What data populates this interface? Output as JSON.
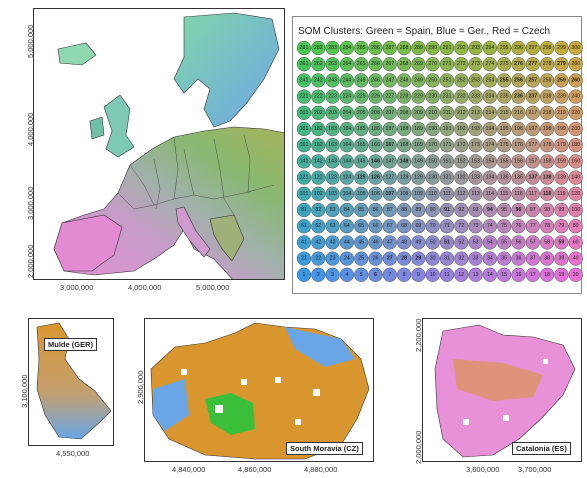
{
  "europe_map": {
    "y_ticks": [
      "5,000,000",
      "4,000,000",
      "3,000,000",
      "2,000,000"
    ],
    "x_ticks": [
      "3,000,000",
      "4,000,000",
      "5,000,000"
    ]
  },
  "som": {
    "title": "SOM Clusters: Green = Spain, Blue = Ger., Red = Czech",
    "rows": 15,
    "cols": 20,
    "highlighted_red": [
      257,
      259,
      260,
      255,
      374,
      319,
      320
    ],
    "highlighted_blue": [
      333,
      167,
      146,
      148,
      126,
      125
    ],
    "highlighted_dark": [
      389,
      388,
      353,
      277,
      276,
      279,
      256,
      236,
      237,
      138,
      137,
      118,
      107,
      91,
      94,
      96,
      51,
      59,
      28,
      29,
      27,
      6
    ]
  },
  "mulde": {
    "label": "Mulde (GER)",
    "y_ticks": [
      "3,100,000"
    ],
    "x_ticks": [
      "4,550,000"
    ]
  },
  "moravia": {
    "label": "South Moravia (CZ)",
    "y_ticks": [
      "2,900,000"
    ],
    "x_ticks": [
      "4,840,000",
      "4,860,000",
      "4,880,000"
    ]
  },
  "catalonia": {
    "label": "Catalonia (ES)",
    "y_ticks": [
      "2,200,000",
      "2,000,000"
    ],
    "x_ticks": [
      "3,600,000",
      "3,700,000"
    ]
  },
  "colors": {
    "spain_green": "#3bbf3b",
    "germany_blue": "#6aa6e6",
    "czech_red": "#e04040",
    "orange": "#d9962f",
    "pink": "#e890d8"
  }
}
